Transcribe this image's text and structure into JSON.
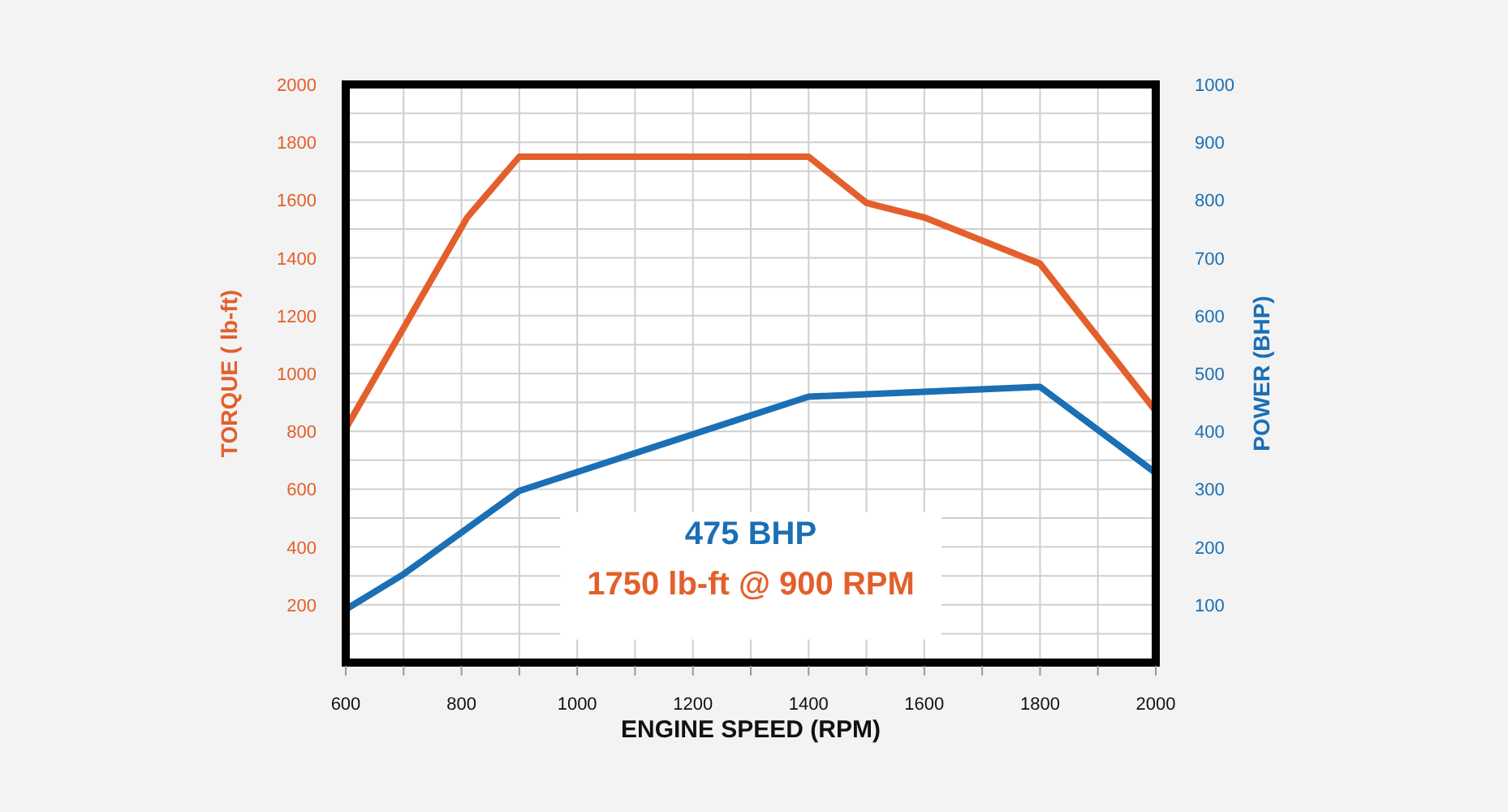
{
  "chart_data": {
    "type": "line",
    "xlabel": "ENGINE SPEED (RPM)",
    "ylabel": "TORQUE ( lb-ft)",
    "y2label": "POWER (BHP)",
    "xlim": [
      600,
      2000
    ],
    "xticks": [
      600,
      {
        "value": 700,
        "label": null
      },
      800,
      {
        "value": 900,
        "label": null
      },
      1000,
      {
        "value": 1100,
        "label": null
      },
      1200,
      {
        "value": 1300,
        "label": null
      },
      1400,
      {
        "value": 1500,
        "label": null
      },
      1600,
      {
        "value": 1700,
        "label": null
      },
      1800,
      {
        "value": 1900,
        "label": null
      },
      2000
    ],
    "ylim": [
      0,
      2000
    ],
    "yticks": [
      {
        "value": 100,
        "label": null
      },
      200,
      {
        "value": 300,
        "label": null
      },
      400,
      {
        "value": 500,
        "label": null
      },
      600,
      {
        "value": 700,
        "label": null
      },
      800,
      {
        "value": 900,
        "label": null
      },
      1000,
      {
        "value": 1100,
        "label": null
      },
      1200,
      {
        "value": 1300,
        "label": null
      },
      1400,
      {
        "value": 1500,
        "label": null
      },
      1600,
      {
        "value": 1700,
        "label": null
      },
      1800,
      {
        "value": 1900,
        "label": null
      },
      2000
    ],
    "y2lim": [
      0,
      1000
    ],
    "y2ticks": [
      100,
      200,
      300,
      400,
      500,
      600,
      700,
      800,
      900,
      1000
    ],
    "grid": true,
    "marker": "none",
    "line_style": "solid",
    "series": [
      {
        "color": "#e35f2b",
        "x": [
          600,
          810,
          900,
          1400,
          1500,
          1600,
          1800,
          2000
        ],
        "values": [
          810,
          1540,
          1750,
          1750,
          1590,
          1540,
          1380,
          870
        ]
      },
      {
        "color": "#1a6fb5",
        "axis": "y2",
        "x": [
          600,
          700,
          900,
          1400,
          1800,
          2000
        ],
        "values": [
          92,
          153,
          297,
          460,
          477,
          328
        ]
      }
    ],
    "annotations": [
      "475 BHP",
      "1750 lb-ft @ 900 RPM"
    ]
  }
}
